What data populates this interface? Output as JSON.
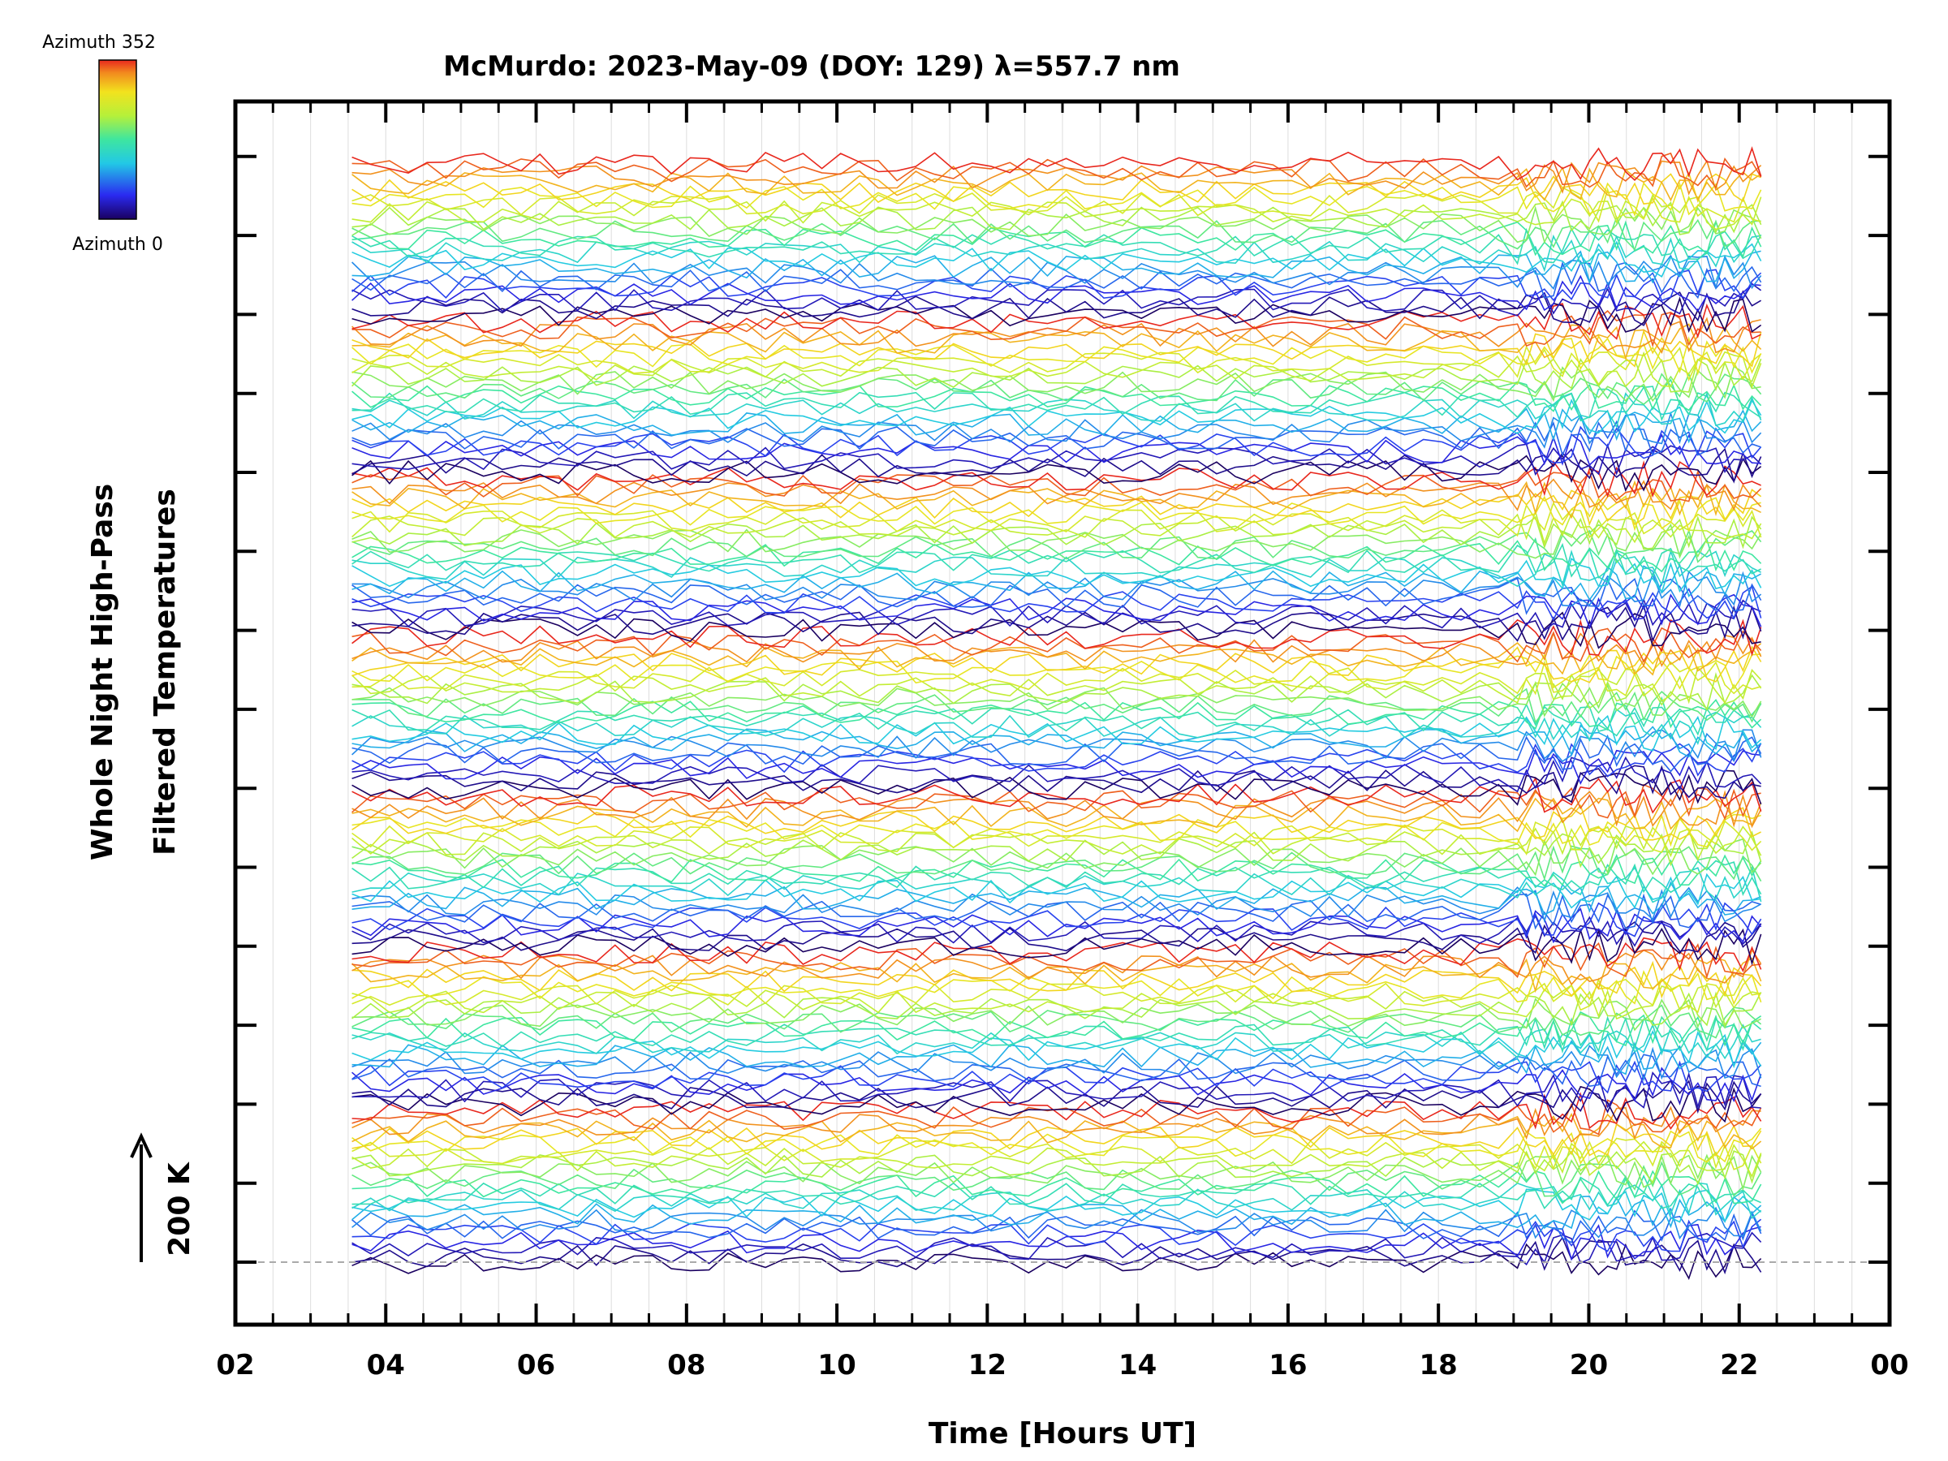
{
  "chart_data": {
    "type": "line",
    "title": "McMurdo: 2023-May-09 (DOY: 129) λ=557.7 nm",
    "xlabel": "Time [Hours UT]",
    "ylabel_line1": "Whole Night High-Pass",
    "ylabel_line2": "Filtered Temperatures",
    "scale_label": "200 K",
    "colorbar": {
      "max_label": "Azimuth 352",
      "min_label": "Azimuth 0"
    },
    "x_ticks": [
      "02",
      "04",
      "06",
      "08",
      "10",
      "12",
      "14",
      "16",
      "18",
      "20",
      "22",
      "00"
    ],
    "xlim": [
      2,
      24
    ],
    "time_range": [
      3.55,
      22.4
    ],
    "series_groups": 7,
    "series_per_group": 23,
    "grid": true,
    "legend": "colorbar top-left"
  }
}
